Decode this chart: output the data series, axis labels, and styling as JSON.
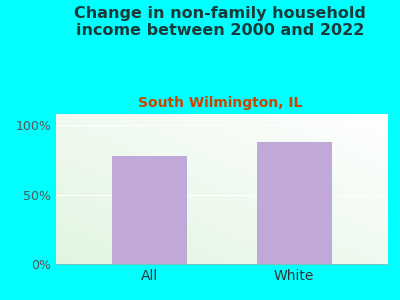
{
  "title": "Change in non-family household\nincome between 2000 and 2022",
  "subtitle": "South Wilmington, IL",
  "categories": [
    "All",
    "White"
  ],
  "values": [
    78,
    88
  ],
  "bar_color": "#C0A8D8",
  "title_color": "#1a3a3a",
  "subtitle_color": "#cc4400",
  "bg_color": "#00FFFF",
  "yticks": [
    0,
    50,
    100
  ],
  "ytick_labels": [
    "0%",
    "50%",
    "100%"
  ],
  "ylim": [
    0,
    108
  ],
  "title_fontsize": 11.5,
  "subtitle_fontsize": 10,
  "tick_fontsize": 9,
  "xlabel_fontsize": 10
}
